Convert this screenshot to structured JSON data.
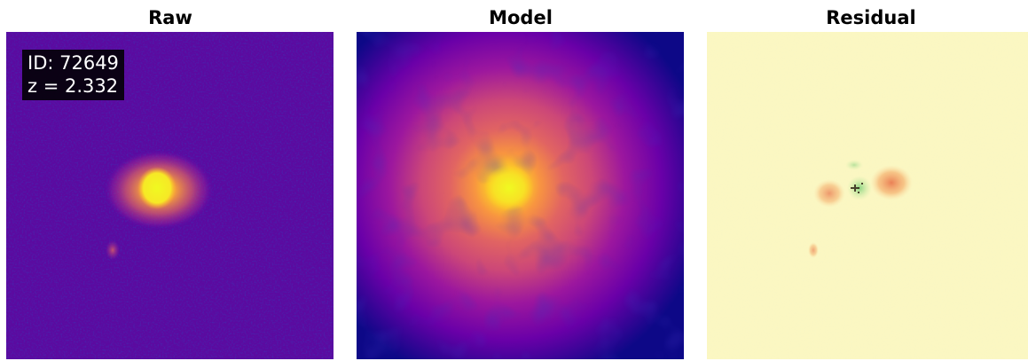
{
  "panels": [
    {
      "title": "Raw"
    },
    {
      "title": "Model"
    },
    {
      "title": "Residual"
    }
  ],
  "annotation": {
    "id_line": "ID: 72649",
    "z_line": "z = 2.332"
  },
  "colormaps": {
    "raw_model": "plasma",
    "residual": "diverging (red-yellow-green)"
  },
  "colors": {
    "plasma_dark": "#0d0887",
    "plasma_purple": "#7e03a8",
    "plasma_pink": "#cc4778",
    "plasma_orange": "#f89540",
    "plasma_yellow": "#f0f921",
    "residual_bg": "#fbf7c2",
    "residual_pos": "#f4a460",
    "residual_neg": "#9edc8c"
  }
}
